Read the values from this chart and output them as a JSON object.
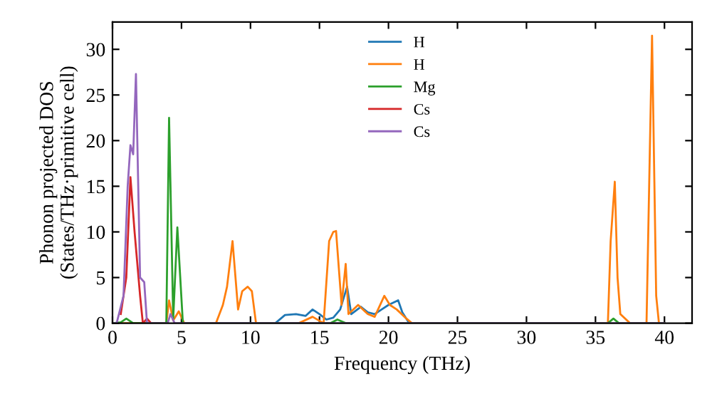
{
  "chart_data": {
    "type": "line",
    "xlabel": "Frequency (THz)",
    "ylabel": "Phonon projected DOS\n(States/THz·primitive cell)",
    "xlim": [
      0,
      42
    ],
    "ylim": [
      0,
      33
    ],
    "xticks": [
      0,
      5,
      10,
      15,
      20,
      25,
      30,
      35,
      40
    ],
    "yticks": [
      0,
      5,
      10,
      15,
      20,
      25,
      30
    ],
    "legend": "top",
    "grid": false,
    "marker": "none",
    "line_style": "solid",
    "series": [
      {
        "name": "H",
        "color": "#1f77b4",
        "x": [
          11.8,
          12.5,
          13.3,
          14,
          14.5,
          15,
          15.5,
          16,
          16.5,
          17,
          17.3,
          18,
          18.5,
          19,
          19.5,
          20,
          20.7,
          21,
          21.5
        ],
        "values": [
          0,
          0.9,
          1,
          0.8,
          1.5,
          1,
          0.4,
          0.6,
          1.5,
          4,
          1,
          1.8,
          1.2,
          1,
          1.5,
          2,
          2.5,
          1.2,
          0
        ]
      },
      {
        "name": "H",
        "color": "#ff7f0e",
        "x": [
          0,
          3.9,
          4.1,
          4.4,
          4.8,
          5.2,
          7.5,
          8,
          8.3,
          8.7,
          9.1,
          9.4,
          9.8,
          10.1,
          10.4,
          13.5,
          14.5,
          15.3,
          15.7,
          16,
          16.2,
          16.6,
          16.9,
          17.1,
          17.8,
          18.5,
          19,
          19.7,
          20.1,
          20.6,
          21.3,
          21.7,
          35.9,
          36.1,
          36.4,
          36.6,
          36.8,
          37.5,
          38.7,
          39.1,
          39.4,
          39.6,
          40
        ],
        "values": [
          0,
          0,
          2.5,
          0.3,
          1.3,
          0,
          0,
          2,
          4,
          9,
          1.5,
          3.5,
          4,
          3.5,
          0,
          0,
          0.7,
          0,
          9,
          10,
          10.1,
          2,
          6.5,
          1,
          2,
          1,
          0.7,
          3,
          2,
          1.5,
          0.5,
          0,
          0,
          9,
          15.5,
          5,
          1,
          0,
          0,
          31.5,
          3,
          0,
          0
        ]
      },
      {
        "name": "Mg",
        "color": "#2ca02c",
        "x": [
          0,
          0.6,
          1,
          1.5,
          3.9,
          4.1,
          4.4,
          4.7,
          5.1,
          15.8,
          16.3,
          16.9,
          35.9,
          36.3,
          36.7,
          40
        ],
        "values": [
          0,
          0.1,
          0.5,
          0,
          0,
          22.5,
          0.5,
          10.5,
          0,
          0,
          0.4,
          0,
          0,
          0.5,
          0,
          0
        ]
      },
      {
        "name": "Cs",
        "color": "#d62728",
        "x": [
          0.6,
          1,
          1.3,
          1.6,
          2,
          2.2,
          2.5,
          2.8
        ],
        "values": [
          1,
          5,
          16,
          10,
          3,
          0,
          0.5,
          0
        ]
      },
      {
        "name": "Cs",
        "color": "#9467bd",
        "x": [
          0,
          0.3,
          0.8,
          1.1,
          1.3,
          1.5,
          1.7,
          2,
          2.3,
          2.5,
          4,
          4.2,
          4.5,
          40
        ],
        "values": [
          0,
          0,
          3,
          15,
          19.5,
          18.5,
          27.3,
          5,
          4.5,
          0,
          0,
          1,
          0,
          0
        ]
      }
    ]
  }
}
